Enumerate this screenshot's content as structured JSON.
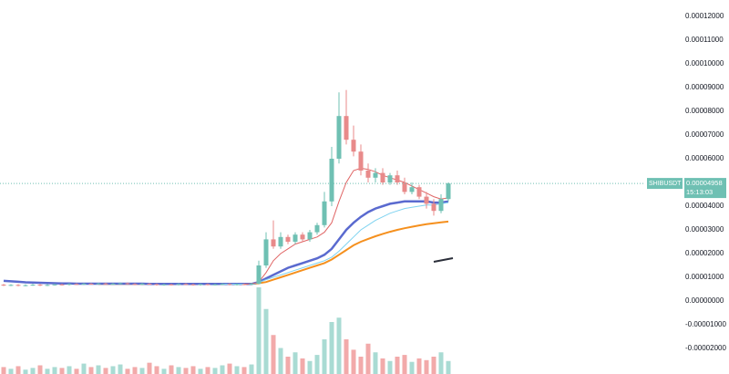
{
  "chart_data": {
    "type": "candlestick",
    "symbol": "SHIBUSDT",
    "countdown": "15:13:03",
    "last_price": {
      "value": 4.958e-05,
      "label": "0.00004958"
    },
    "ylim": [
      -3.077e-05,
      0.00012692
    ],
    "yticks": [
      {
        "value": 0.00012,
        "label": "0.00012000"
      },
      {
        "value": 0.00011,
        "label": "0.00011000"
      },
      {
        "value": 0.0001,
        "label": "0.00010000"
      },
      {
        "value": 9e-05,
        "label": "0.00009000"
      },
      {
        "value": 8e-05,
        "label": "0.00008000"
      },
      {
        "value": 7e-05,
        "label": "0.00007000"
      },
      {
        "value": 6e-05,
        "label": "0.00006000"
      },
      {
        "value": 5e-05,
        "label": "0.00005000"
      },
      {
        "value": 4e-05,
        "label": "0.00004000"
      },
      {
        "value": 3e-05,
        "label": "0.00003000"
      },
      {
        "value": 2e-05,
        "label": "0.00002000"
      },
      {
        "value": 1e-05,
        "label": "0.00001000"
      },
      {
        "value": 0,
        "label": "0.00000000"
      },
      {
        "value": -1e-05,
        "label": "-0.00001000"
      },
      {
        "value": -2e-05,
        "label": "-0.00002000"
      }
    ],
    "up_color": "#6fc0b3",
    "down_color": "#e88a8a",
    "volume_up_color": "#a9dbd3",
    "volume_down_color": "#f2aaaa",
    "open": [
      6.9e-06,
      6.6e-06,
      6.8e-06,
      6.5e-06,
      6.7e-06,
      6.9e-06,
      6.6e-06,
      6.8e-06,
      7e-06,
      6.9e-06,
      7.2e-06,
      7.1e-06,
      7.3e-06,
      7.2e-06,
      7.4e-06,
      7.1e-06,
      7.3e-06,
      7.5e-06,
      7.2e-06,
      7e-06,
      7.3e-06,
      7.1e-06,
      6.8e-06,
      7e-06,
      6.9e-06,
      7.2e-06,
      7e-06,
      6.8e-06,
      7.1e-06,
      6.9e-06,
      7e-06,
      7.2e-06,
      6.9e-06,
      7.1e-06,
      7e-06,
      7.3e-06,
      1.5e-05,
      2.6e-05,
      2.3e-05,
      2.7e-05,
      2.5e-05,
      2.8e-05,
      2.6e-05,
      2.9e-05,
      3.2e-05,
      4.2e-05,
      6e-05,
      7.8e-05,
      6.8e-05,
      6.3e-05,
      5.5e-05,
      5.2e-05,
      5.4e-05,
      5e-05,
      5.3e-05,
      5e-05,
      4.6e-05,
      4.8e-05,
      4.4e-05,
      4.1e-05,
      3.8e-05,
      4.3e-05
    ],
    "high": [
      7.2e-06,
      7.1e-06,
      7.1e-06,
      7e-06,
      7.2e-06,
      7.2e-06,
      7.1e-06,
      7.3e-06,
      7.3e-06,
      7.5e-06,
      7.5e-06,
      7.6e-06,
      7.6e-06,
      7.7e-06,
      7.7e-06,
      7.6e-06,
      7.8e-06,
      7.8e-06,
      7.5e-06,
      7.6e-06,
      7.6e-06,
      7.4e-06,
      7.3e-06,
      7.3e-06,
      7.5e-06,
      7.5e-06,
      7.3e-06,
      7.4e-06,
      7.4e-06,
      7.3e-06,
      7.5e-06,
      7.5e-06,
      7.4e-06,
      7.4e-06,
      7.6e-06,
      1.7e-05,
      2.9e-05,
      3.4e-05,
      2.9e-05,
      2.8e-05,
      2.9e-05,
      2.9e-05,
      3e-05,
      3.3e-05,
      4.6e-05,
      6.5e-05,
      8.8e-05,
      8.9e-05,
      7.4e-05,
      6.6e-05,
      5.8e-05,
      5.6e-05,
      5.6e-05,
      5.4e-05,
      5.5e-05,
      5.2e-05,
      5e-05,
      4.9e-05,
      4.6e-05,
      4.3e-05,
      4.5e-05,
      5e-05
    ],
    "low": [
      6.3e-06,
      6.3e-06,
      6.2e-06,
      6.2e-06,
      6.4e-06,
      6.3e-06,
      6.3e-06,
      6.5e-06,
      6.6e-06,
      6.6e-06,
      6.8e-06,
      6.8e-06,
      6.9e-06,
      6.9e-06,
      6.8e-06,
      6.8e-06,
      7e-06,
      6.9e-06,
      6.7e-06,
      6.7e-06,
      6.8e-06,
      6.5e-06,
      6.5e-06,
      6.6e-06,
      6.6e-06,
      6.7e-06,
      6.5e-06,
      6.5e-06,
      6.6e-06,
      6.6e-06,
      6.7e-06,
      6.6e-06,
      6.6e-06,
      6.7e-06,
      6.7e-06,
      7e-06,
      1.4e-05,
      2.2e-05,
      2.2e-05,
      2.4e-05,
      2.4e-05,
      2.5e-05,
      2.5e-05,
      2.8e-05,
      3.1e-05,
      4e-05,
      5.8e-05,
      6.6e-05,
      6.1e-05,
      5.3e-05,
      5e-05,
      5e-05,
      4.9e-05,
      4.9e-05,
      4.9e-05,
      4.5e-05,
      4.5e-05,
      4.3e-05,
      3.9e-05,
      3.6e-05,
      3.7e-05,
      4.2e-05
    ],
    "close": [
      6.6e-06,
      6.8e-06,
      6.5e-06,
      6.7e-06,
      6.9e-06,
      6.6e-06,
      6.8e-06,
      7e-06,
      6.9e-06,
      7.2e-06,
      7.1e-06,
      7.3e-06,
      7.2e-06,
      7.4e-06,
      7.1e-06,
      7.3e-06,
      7.5e-06,
      7.2e-06,
      7e-06,
      7.3e-06,
      7.1e-06,
      6.8e-06,
      7e-06,
      6.9e-06,
      7.2e-06,
      7e-06,
      6.8e-06,
      7.1e-06,
      6.9e-06,
      7e-06,
      7.2e-06,
      6.9e-06,
      7.1e-06,
      7e-06,
      7.3e-06,
      1.5e-05,
      2.6e-05,
      2.3e-05,
      2.7e-05,
      2.5e-05,
      2.8e-05,
      2.6e-05,
      2.9e-05,
      3.2e-05,
      4.2e-05,
      6e-05,
      7.8e-05,
      6.8e-05,
      6.3e-05,
      5.5e-05,
      5.2e-05,
      5.4e-05,
      5e-05,
      5.3e-05,
      5e-05,
      4.6e-05,
      4.8e-05,
      4.4e-05,
      4.1e-05,
      3.8e-05,
      4.3e-05,
      4.958e-05
    ],
    "volume": [
      8,
      6,
      9,
      5,
      7,
      10,
      6,
      8,
      7,
      9,
      6,
      12,
      8,
      10,
      7,
      9,
      11,
      6,
      8,
      7,
      13,
      9,
      6,
      10,
      8,
      7,
      9,
      6,
      8,
      7,
      10,
      12,
      9,
      8,
      11,
      100,
      75,
      45,
      30,
      20,
      25,
      18,
      15,
      22,
      40,
      60,
      65,
      40,
      28,
      20,
      35,
      25,
      18,
      15,
      20,
      22,
      14,
      18,
      16,
      20,
      25,
      15
    ],
    "series": [
      {
        "color": "#f5901e",
        "width": 2,
        "values": [
          null,
          null,
          null,
          null,
          null,
          null,
          null,
          null,
          null,
          null,
          null,
          null,
          null,
          7.2e-06,
          7.2e-06,
          7.2e-06,
          7.2e-06,
          7.2e-06,
          7.2e-06,
          7.2e-06,
          7.2e-06,
          7.2e-06,
          7.2e-06,
          7.2e-06,
          7.2e-06,
          7.2e-06,
          7.2e-06,
          7.2e-06,
          7.2e-06,
          7.2e-06,
          7.2e-06,
          7.2e-06,
          7.2e-06,
          7.2e-06,
          7.2e-06,
          7.5e-06,
          8e-06,
          9e-06,
          1e-05,
          1.1e-05,
          1.2e-05,
          1.3e-05,
          1.4e-05,
          1.5e-05,
          1.6e-05,
          1.75e-05,
          1.95e-05,
          2.15e-05,
          2.35e-05,
          2.5e-05,
          2.62e-05,
          2.73e-05,
          2.83e-05,
          2.92e-05,
          3e-05,
          3.07e-05,
          3.13e-05,
          3.19e-05,
          3.24e-05,
          3.28e-05,
          3.32e-05,
          3.35e-05
        ]
      },
      {
        "color": "#5a6acf",
        "width": 2.5,
        "values": [
          8.5e-06,
          8.3e-06,
          8.1e-06,
          7.9e-06,
          7.8e-06,
          7.7e-06,
          7.6e-06,
          7.5e-06,
          7.4e-06,
          7.4e-06,
          7.3e-06,
          7.3e-06,
          7.3e-06,
          7.3e-06,
          7.3e-06,
          7.3e-06,
          7.3e-06,
          7.3e-06,
          7.3e-06,
          7.3e-06,
          7.2e-06,
          7.2e-06,
          7.2e-06,
          7.2e-06,
          7.2e-06,
          7.2e-06,
          7.2e-06,
          7.2e-06,
          7.2e-06,
          7.2e-06,
          7.2e-06,
          7.2e-06,
          7.2e-06,
          7.2e-06,
          7.2e-06,
          8e-06,
          9.5e-06,
          1.1e-05,
          1.25e-05,
          1.4e-05,
          1.5e-05,
          1.6e-05,
          1.7e-05,
          1.8e-05,
          1.95e-05,
          2.2e-05,
          2.6e-05,
          3e-05,
          3.3e-05,
          3.55e-05,
          3.75e-05,
          3.9e-05,
          4e-05,
          4.1e-05,
          4.15e-05,
          4.2e-05,
          4.2e-05,
          4.2e-05,
          4.2e-05,
          4.15e-05,
          4.15e-05,
          4.2e-05
        ]
      },
      {
        "color": "#7fd3f0",
        "width": 1,
        "values": [
          null,
          null,
          null,
          null,
          null,
          null,
          null,
          null,
          null,
          null,
          null,
          null,
          null,
          null,
          null,
          null,
          null,
          null,
          null,
          null,
          null,
          null,
          null,
          null,
          null,
          null,
          null,
          null,
          null,
          null,
          7.1e-06,
          7.1e-06,
          7.1e-06,
          7.1e-06,
          7.1e-06,
          7.8e-06,
          9e-06,
          1e-05,
          1.1e-05,
          1.2e-05,
          1.3e-05,
          1.4e-05,
          1.5e-05,
          1.6e-05,
          1.7e-05,
          1.85e-05,
          2.1e-05,
          2.4e-05,
          2.7e-05,
          3e-05,
          3.2e-05,
          3.4e-05,
          3.55e-05,
          3.7e-05,
          3.8e-05,
          3.9e-05,
          3.95e-05,
          4e-05,
          4.05e-05,
          4.05e-05,
          4.1e-05,
          4.15e-05
        ]
      },
      {
        "color": "#e06666",
        "width": 1,
        "values": [
          null,
          null,
          null,
          null,
          null,
          null,
          null,
          null,
          null,
          null,
          null,
          null,
          null,
          null,
          null,
          null,
          null,
          null,
          null,
          null,
          null,
          null,
          null,
          null,
          null,
          null,
          null,
          null,
          null,
          null,
          null,
          null,
          null,
          7.1e-06,
          7.2e-06,
          8e-06,
          1.2e-05,
          1.7e-05,
          2e-05,
          2.2e-05,
          2.4e-05,
          2.5e-05,
          2.6e-05,
          2.7e-05,
          2.9e-05,
          3.3e-05,
          4.2e-05,
          5e-05,
          5.5e-05,
          5.6e-05,
          5.55e-05,
          5.45e-05,
          5.3e-05,
          5.2e-05,
          5.1e-05,
          5e-05,
          4.85e-05,
          4.7e-05,
          4.55e-05,
          4.4e-05,
          4.3e-05,
          4.35e-05
        ]
      }
    ]
  }
}
